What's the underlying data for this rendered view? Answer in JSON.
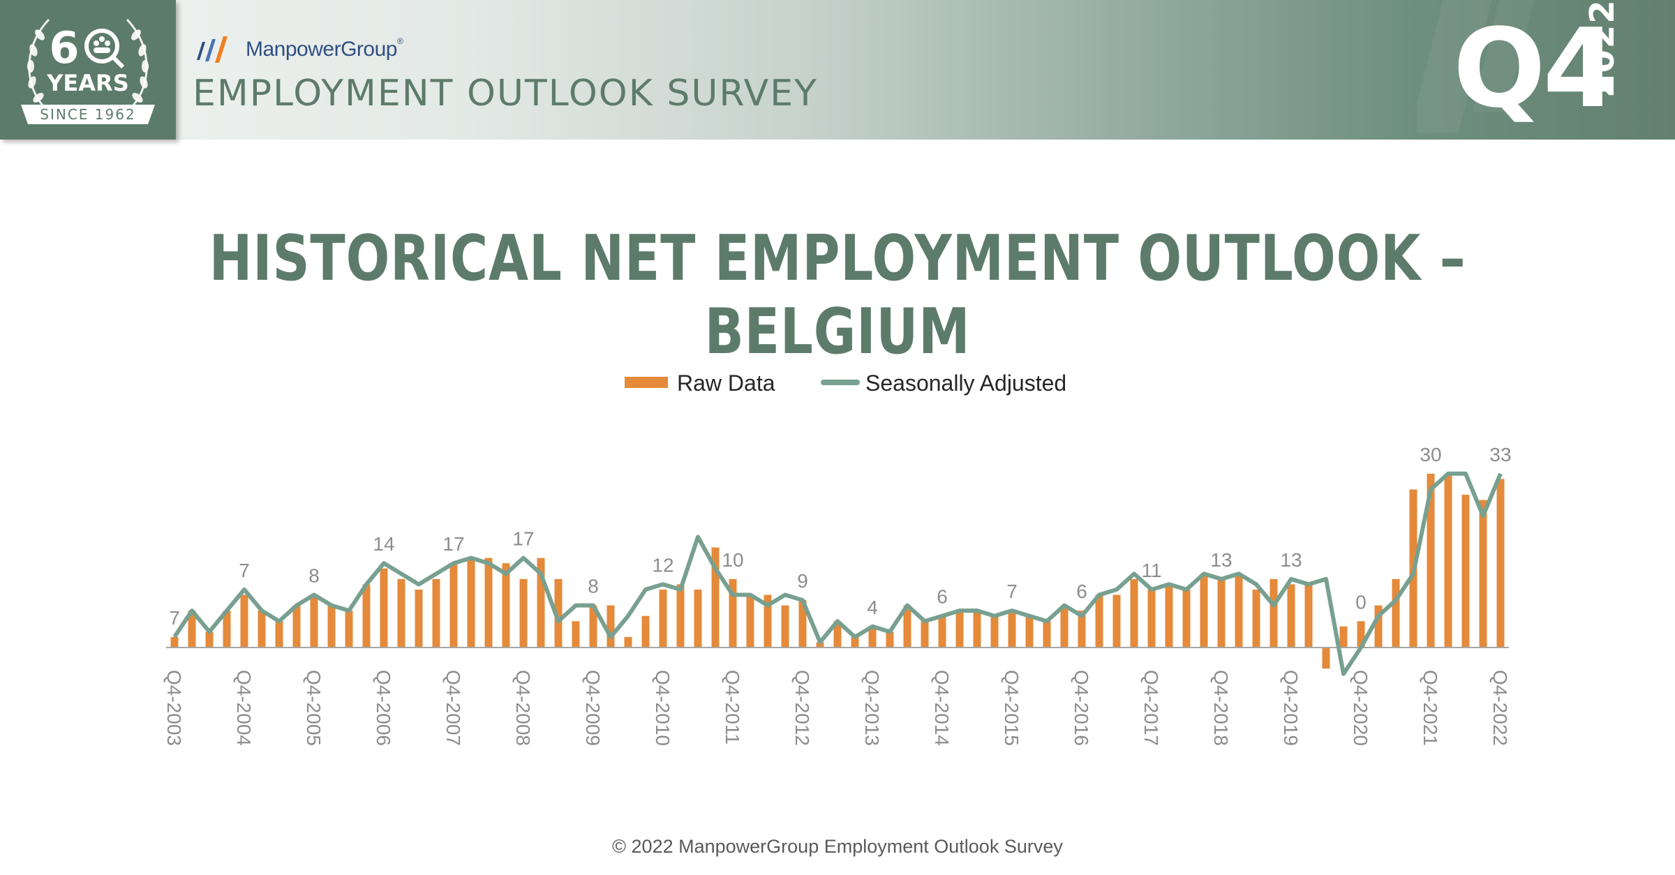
{
  "header": {
    "brand_name": "ManpowerGroup",
    "registered_mark": "®",
    "survey_title": "EMPLOYMENT OUTLOOK SURVEY",
    "quarter": "Q4",
    "year": "2022",
    "badge": {
      "number_6": "6",
      "years": "YEARS",
      "since": "SINCE 1962"
    }
  },
  "title": "HISTORICAL NET EMPLOYMENT OUTLOOK – BELGIUM",
  "footer": "© 2022 ManpowerGroup Employment Outlook Survey",
  "colors": {
    "raw": "#e48a3a",
    "adjusted": "#78a090",
    "title": "#5d7b6a",
    "axis": "#a6a6a6",
    "label": "#8c8c8c",
    "brand_blue": "#2f4f82",
    "brand_orange": "#f07f21"
  },
  "chart_data": {
    "type": "bar",
    "categories": [
      "Q4-2003",
      "Q1-2004",
      "Q2-2004",
      "Q3-2004",
      "Q4-2004",
      "Q1-2005",
      "Q2-2005",
      "Q3-2005",
      "Q4-2005",
      "Q1-2006",
      "Q2-2006",
      "Q3-2006",
      "Q4-2006",
      "Q1-2007",
      "Q2-2007",
      "Q3-2007",
      "Q4-2007",
      "Q1-2008",
      "Q2-2008",
      "Q3-2008",
      "Q4-2008",
      "Q1-2009",
      "Q2-2009",
      "Q3-2009",
      "Q4-2009",
      "Q1-2010",
      "Q2-2010",
      "Q3-2010",
      "Q4-2010",
      "Q1-2011",
      "Q2-2011",
      "Q3-2011",
      "Q4-2011",
      "Q1-2012",
      "Q2-2012",
      "Q3-2012",
      "Q4-2012",
      "Q1-2013",
      "Q2-2013",
      "Q3-2013",
      "Q4-2013",
      "Q1-2014",
      "Q2-2014",
      "Q3-2014",
      "Q4-2014",
      "Q1-2015",
      "Q2-2015",
      "Q3-2015",
      "Q4-2015",
      "Q1-2016",
      "Q2-2016",
      "Q3-2016",
      "Q4-2016",
      "Q1-2017",
      "Q2-2017",
      "Q3-2017",
      "Q4-2017",
      "Q1-2018",
      "Q2-2018",
      "Q3-2018",
      "Q4-2018",
      "Q1-2019",
      "Q2-2019",
      "Q3-2019",
      "Q4-2019",
      "Q1-2020",
      "Q2-2020",
      "Q3-2020",
      "Q4-2020",
      "Q1-2021",
      "Q2-2021",
      "Q3-2021",
      "Q4-2021",
      "Q1-2022",
      "Q2-2022",
      "Q3-2022",
      "Q4-2022"
    ],
    "x_tick_labels": [
      "Q4-2003",
      "Q4-2004",
      "Q4-2005",
      "Q4-2006",
      "Q4-2007",
      "Q4-2008",
      "Q4-2009",
      "Q4-2010",
      "Q4-2011",
      "Q4-2012",
      "Q4-2013",
      "Q4-2014",
      "Q4-2015",
      "Q4-2016",
      "Q4-2017",
      "Q4-2018",
      "Q4-2019",
      "Q4-2020",
      "Q4-2021",
      "Q4-2022"
    ],
    "series": [
      {
        "name": "Raw Data",
        "type": "bar",
        "values": [
          2,
          7,
          3,
          7,
          10,
          7,
          5,
          8,
          10,
          8,
          7,
          12,
          15,
          13,
          11,
          13,
          16,
          17,
          17,
          16,
          13,
          17,
          13,
          5,
          8,
          8,
          2,
          6,
          11,
          12,
          11,
          19,
          13,
          10,
          10,
          8,
          9,
          1,
          5,
          2,
          4,
          3,
          8,
          5,
          6,
          7,
          7,
          6,
          7,
          6,
          5,
          8,
          7,
          10,
          10,
          13,
          11,
          12,
          11,
          14,
          13,
          14,
          11,
          13,
          12,
          12,
          -4,
          4,
          5,
          8,
          13,
          30,
          33,
          33,
          29,
          28,
          32
        ]
      },
      {
        "name": "Seasonally Adjusted",
        "type": "line",
        "values": [
          2,
          7,
          3,
          7,
          11,
          7,
          5,
          8,
          10,
          8,
          7,
          12,
          16,
          14,
          12,
          14,
          16,
          17,
          16,
          14,
          17,
          14,
          5,
          8,
          8,
          2,
          6,
          11,
          12,
          11,
          21,
          15,
          10,
          10,
          8,
          10,
          9,
          1,
          5,
          2,
          4,
          3,
          8,
          5,
          6,
          7,
          7,
          6,
          7,
          6,
          5,
          8,
          6,
          10,
          11,
          14,
          11,
          12,
          11,
          14,
          13,
          14,
          12,
          8,
          13,
          12,
          13,
          -5,
          0,
          6,
          9,
          14,
          30,
          33,
          33,
          25,
          33
        ]
      }
    ],
    "data_labels": [
      {
        "index": 0,
        "text": "7"
      },
      {
        "index": 4,
        "text": "7"
      },
      {
        "index": 8,
        "text": "8"
      },
      {
        "index": 12,
        "text": "14"
      },
      {
        "index": 16,
        "text": "17"
      },
      {
        "index": 20,
        "text": "17"
      },
      {
        "index": 24,
        "text": "8"
      },
      {
        "index": 28,
        "text": "12"
      },
      {
        "index": 32,
        "text": "10"
      },
      {
        "index": 36,
        "text": "9"
      },
      {
        "index": 40,
        "text": "4"
      },
      {
        "index": 44,
        "text": "6"
      },
      {
        "index": 48,
        "text": "7"
      },
      {
        "index": 52,
        "text": "6"
      },
      {
        "index": 56,
        "text": "11"
      },
      {
        "index": 60,
        "text": "13"
      },
      {
        "index": 64,
        "text": "13"
      },
      {
        "index": 68,
        "text": "0"
      },
      {
        "index": 72,
        "text": "30"
      },
      {
        "index": 76,
        "text": "33"
      }
    ],
    "ylim": [
      -7,
      36
    ],
    "legend": "top-center",
    "grid": false
  }
}
